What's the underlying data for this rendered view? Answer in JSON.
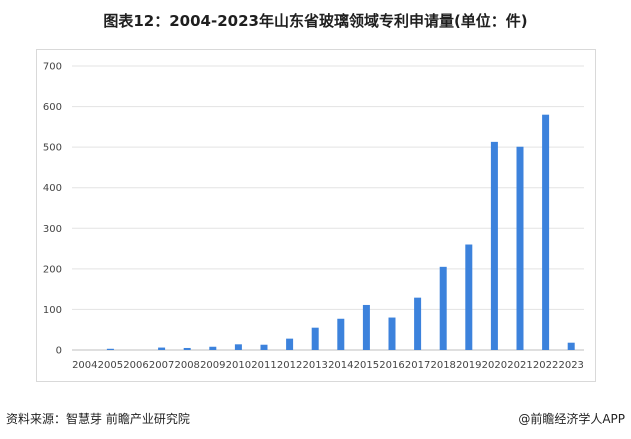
{
  "title": "图表12：2004-2023年山东省玻璃领域专利申请量(单位：件)",
  "footer": {
    "source": "资料来源：智慧芽 前瞻产业研究院",
    "brand": "@前瞻经济学人APP"
  },
  "colors": {
    "bar": "#3c82dc",
    "grid": "#e3e3e3",
    "axis": "#bfbfbf"
  },
  "chart_data": {
    "type": "bar",
    "title": "图表12：2004-2023年山东省玻璃领域专利申请量(单位：件)",
    "xlabel": "",
    "ylabel": "",
    "ylim": [
      0,
      700
    ],
    "yticks": [
      0,
      100,
      200,
      300,
      400,
      500,
      600,
      700
    ],
    "grid": true,
    "legend": "none",
    "categories": [
      "2004",
      "2005",
      "2006",
      "2007",
      "2008",
      "2009",
      "2010",
      "2011",
      "2012",
      "2013",
      "2014",
      "2015",
      "2016",
      "2017",
      "2018",
      "2019",
      "2020",
      "2021",
      "2022",
      "2023"
    ],
    "values": [
      0,
      3,
      0,
      6,
      5,
      8,
      14,
      13,
      28,
      55,
      77,
      111,
      80,
      129,
      205,
      260,
      513,
      501,
      580,
      18
    ]
  }
}
